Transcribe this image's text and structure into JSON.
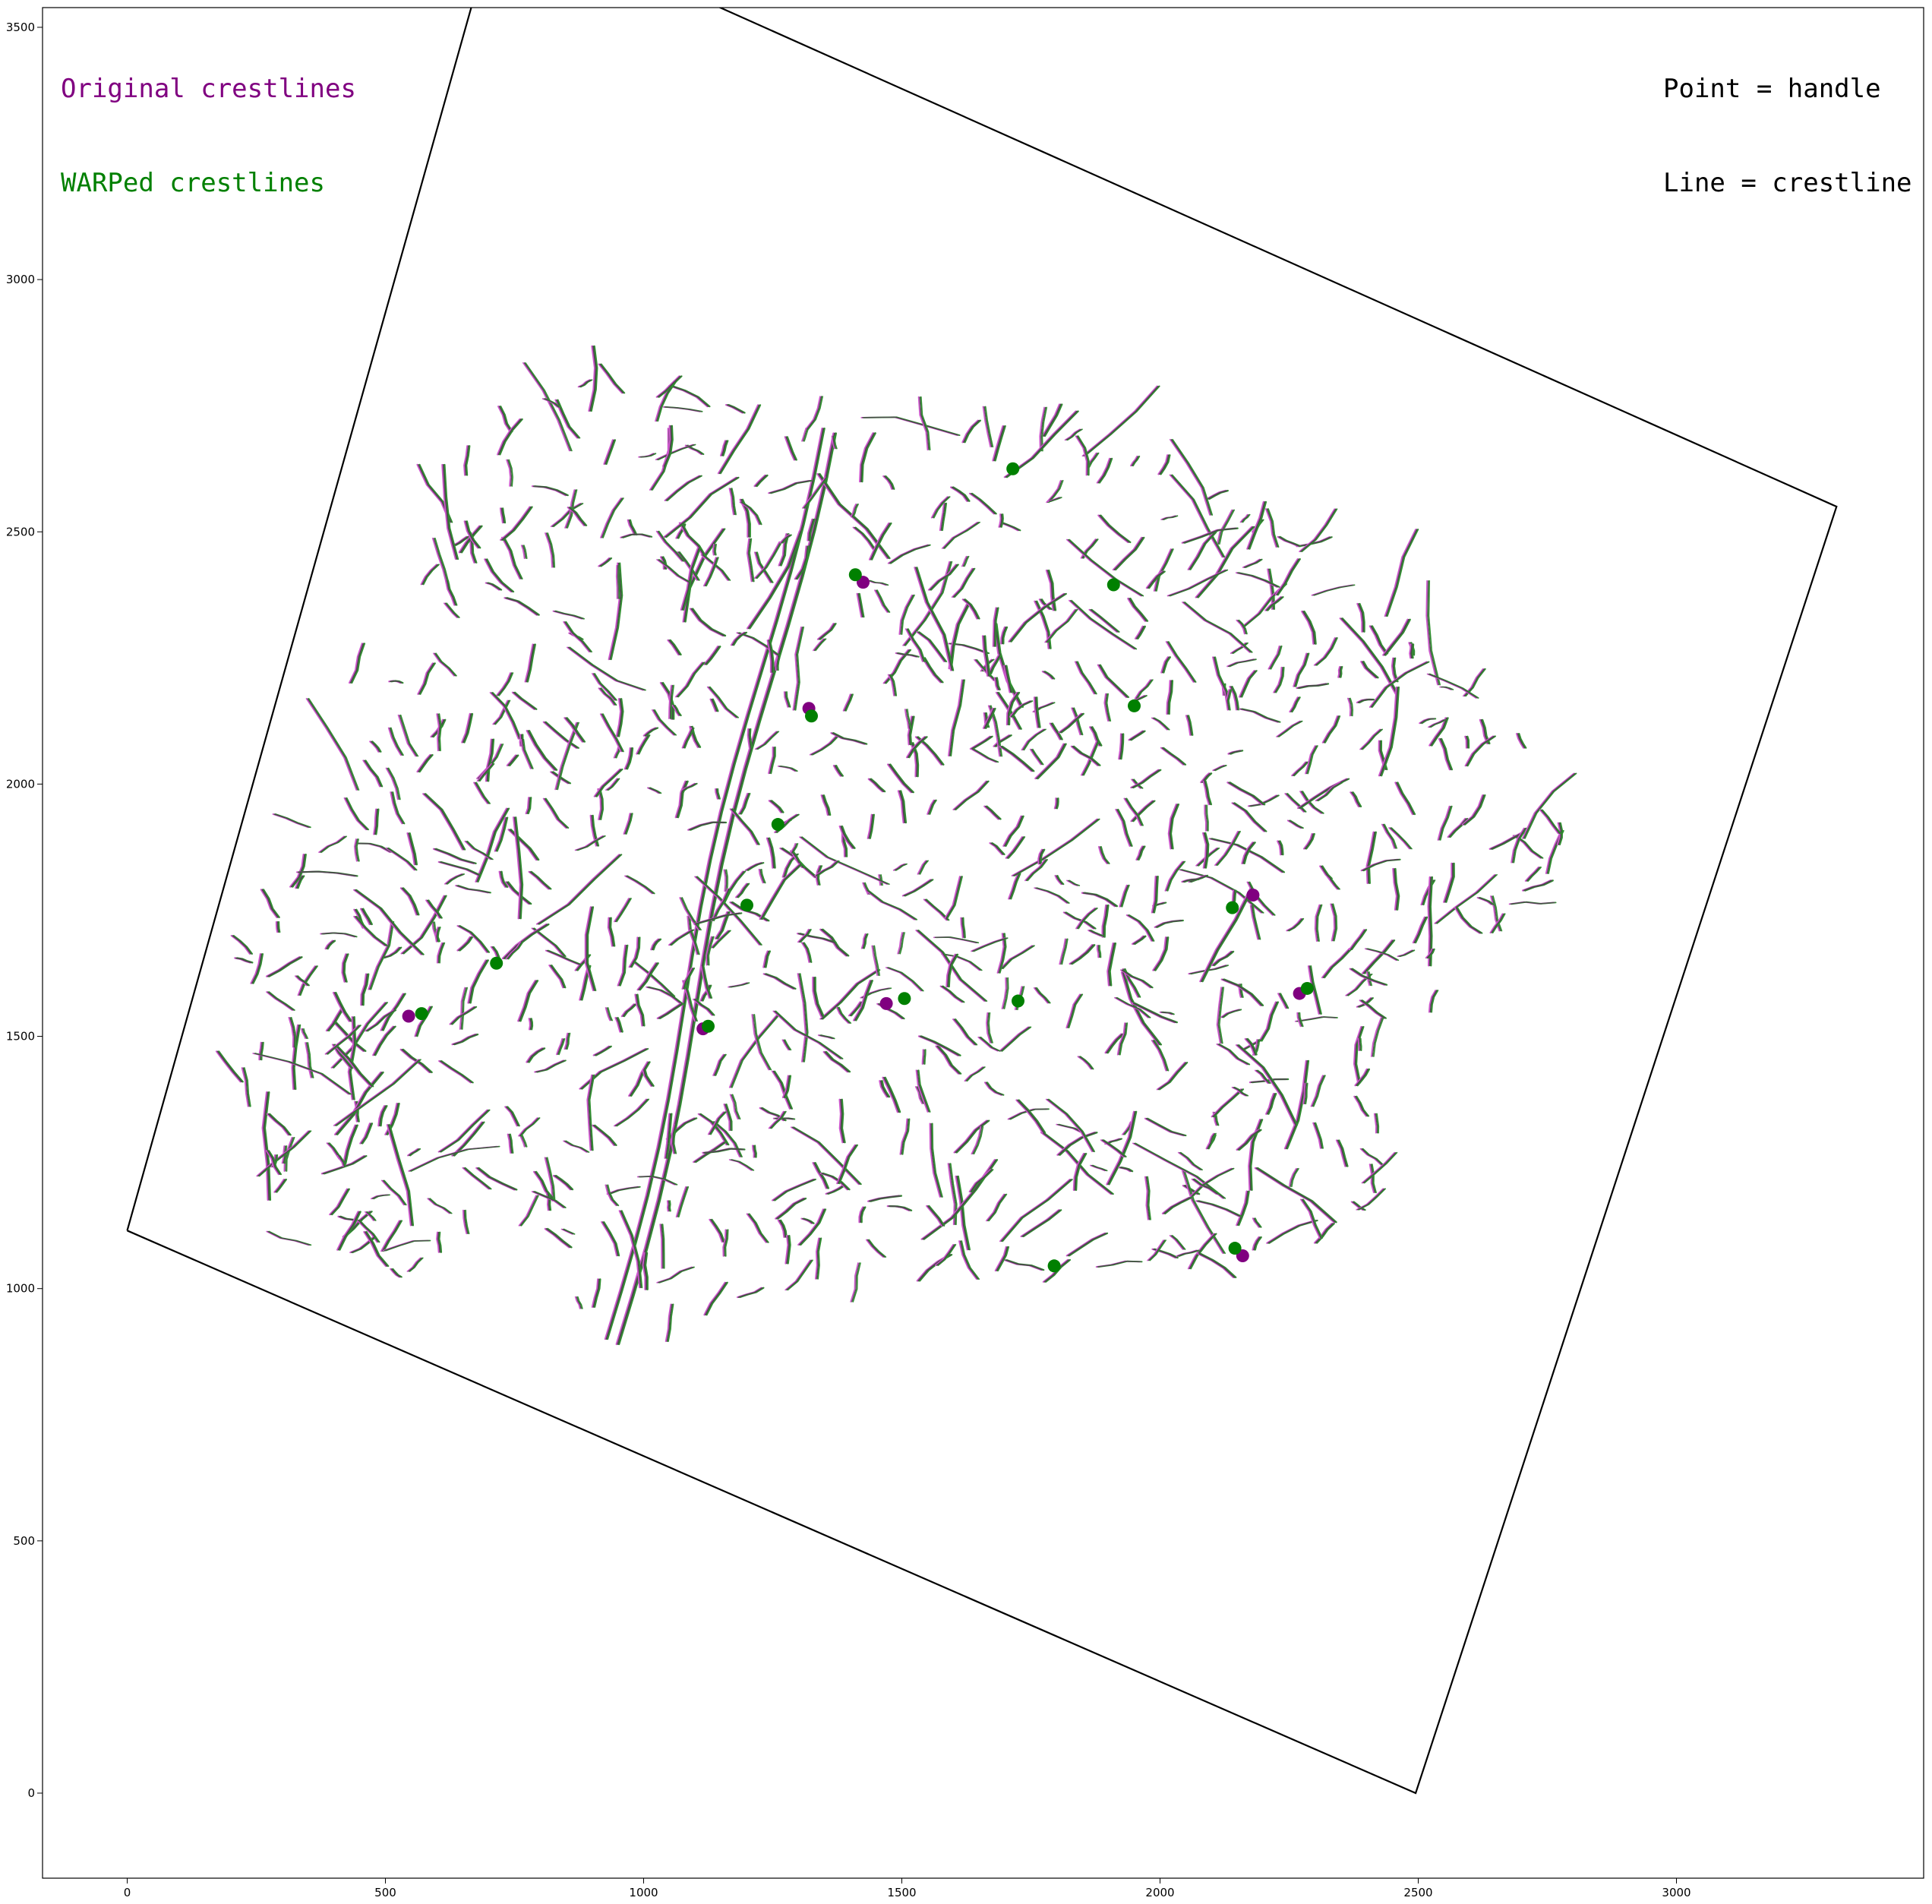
{
  "chart_data": {
    "type": "scatter",
    "title": "",
    "xlabel": "",
    "ylabel": "",
    "xlim": [
      -165,
      3470
    ],
    "ylim": [
      -165,
      3555
    ],
    "xticks": [
      0,
      500,
      1000,
      1500,
      2000,
      2500,
      3000
    ],
    "yticks": [
      0,
      500,
      1000,
      1500,
      2000,
      2500,
      3000,
      3500
    ],
    "annotations": {
      "original_label": "Original crestlines",
      "warped_label": "WARPed crestlines",
      "point_label": "Point = handle",
      "line_label": "Line = crestline"
    },
    "colors": {
      "original": "#800080",
      "warped": "#008000",
      "crestline_dark": "#4a4a4a",
      "frame": "#000000"
    },
    "boundary": {
      "x": [
        0,
        720,
        3310,
        2495,
        0
      ],
      "y": [
        1115,
        3735,
        2550,
        0,
        1115
      ]
    },
    "handles_original": {
      "x": [
        545,
        1115,
        1320,
        1425,
        1470,
        2180,
        2270,
        2160
      ],
      "y": [
        1540,
        1515,
        2150,
        2400,
        1565,
        1780,
        1585,
        1065
      ]
    },
    "handles_warped": {
      "x": [
        570,
        715,
        1125,
        1200,
        1260,
        1325,
        1410,
        1505,
        1715,
        1725,
        1795,
        1910,
        1950,
        2140,
        2285,
        2145
      ],
      "y": [
        1545,
        1645,
        1520,
        1760,
        1920,
        2135,
        2415,
        1575,
        2625,
        1570,
        1045,
        2395,
        2155,
        1755,
        1595,
        1080
      ]
    }
  }
}
